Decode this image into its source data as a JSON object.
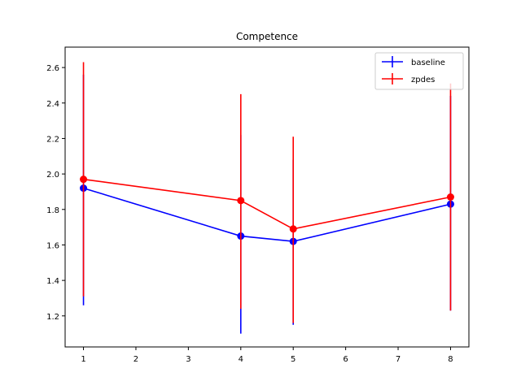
{
  "chart_data": {
    "type": "line",
    "title": "Competence",
    "xlabel": "",
    "ylabel": "",
    "xlim": [
      0.65,
      8.35
    ],
    "ylim": [
      1.025,
      2.715
    ],
    "xticks": [
      1,
      2,
      3,
      4,
      5,
      6,
      7,
      8
    ],
    "xtick_labels": [
      "1",
      "2",
      "3",
      "4",
      "5",
      "6",
      "7",
      "8"
    ],
    "yticks": [
      1.2,
      1.4,
      1.6,
      1.8,
      2.0,
      2.2,
      2.4,
      2.6
    ],
    "ytick_labels": [
      "1.2",
      "1.4",
      "1.6",
      "1.8",
      "2.0",
      "2.2",
      "2.4",
      "2.6"
    ],
    "grid": false,
    "legend_position": "top-right",
    "series": [
      {
        "name": "baseline",
        "color": "#0000ff",
        "x": [
          1,
          4,
          5,
          8
        ],
        "y": [
          1.92,
          1.65,
          1.62,
          1.83
        ],
        "yerr_low": [
          1.26,
          1.1,
          1.15,
          1.23
        ],
        "yerr_high": [
          2.56,
          2.22,
          2.08,
          2.44
        ]
      },
      {
        "name": "zpdes",
        "color": "#ff0000",
        "x": [
          1,
          4,
          5,
          8
        ],
        "y": [
          1.97,
          1.85,
          1.69,
          1.87
        ],
        "yerr_low": [
          1.31,
          1.24,
          1.16,
          1.23
        ],
        "yerr_high": [
          2.63,
          2.45,
          2.21,
          2.51
        ]
      }
    ]
  }
}
